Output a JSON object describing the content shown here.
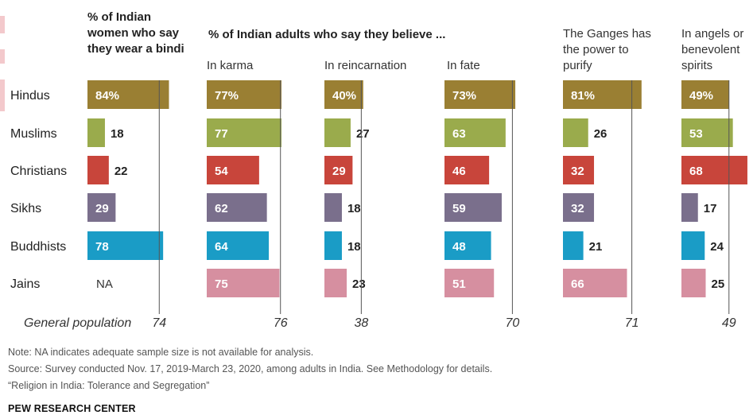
{
  "chart_data": {
    "type": "bar",
    "orientation": "horizontal",
    "categories": [
      "Hindus",
      "Muslims",
      "Christians",
      "Sikhs",
      "Buddhists",
      "Jains"
    ],
    "category_colors": [
      "#9a7f33",
      "#9aab4c",
      "#c8453b",
      "#7a6f8c",
      "#1a9cc6",
      "#d68fa0"
    ],
    "reference_line_color": "#555555",
    "group_header": "% of Indian adults who say they believe ...",
    "series": [
      {
        "name": "% of Indian women who say they wear a bindi",
        "values": [
          84,
          18,
          22,
          29,
          78,
          null
        ],
        "value_labels": [
          "84%",
          "18",
          "22",
          "29",
          "78",
          "NA"
        ],
        "general_population": "74"
      },
      {
        "name": "In karma",
        "values": [
          77,
          77,
          54,
          62,
          64,
          75
        ],
        "value_labels": [
          "77%",
          "77",
          "54",
          "62",
          "64",
          "75"
        ],
        "general_population": "76"
      },
      {
        "name": "In reincarnation",
        "values": [
          40,
          27,
          29,
          18,
          18,
          23
        ],
        "value_labels": [
          "40%",
          "27",
          "29",
          "18",
          "18",
          "23"
        ],
        "general_population": "38"
      },
      {
        "name": "In fate",
        "values": [
          73,
          63,
          46,
          59,
          48,
          51
        ],
        "value_labels": [
          "73%",
          "63",
          "46",
          "59",
          "48",
          "51"
        ],
        "general_population": "70"
      },
      {
        "name": "The Ganges has the power to purify",
        "values": [
          81,
          26,
          32,
          32,
          21,
          66
        ],
        "value_labels": [
          "81%",
          "26",
          "32",
          "32",
          "21",
          "66"
        ],
        "general_population": "71"
      },
      {
        "name": "In angels or benevolent spirits",
        "values": [
          49,
          53,
          68,
          17,
          24,
          25
        ],
        "value_labels": [
          "49%",
          "53",
          "68",
          "17",
          "24",
          "25"
        ],
        "general_population": "49"
      }
    ],
    "general_population_label": "General population",
    "xlim": [
      0,
      100
    ]
  },
  "footer": {
    "note": "Note: NA indicates adequate sample size is not available for analysis.",
    "source": "Source: Survey conducted Nov. 17, 2019-March 23, 2020, among adults in India. See Methodology for details.",
    "report": "“Religion in India: Tolerance and Segregation”",
    "brand": "PEW RESEARCH CENTER"
  }
}
